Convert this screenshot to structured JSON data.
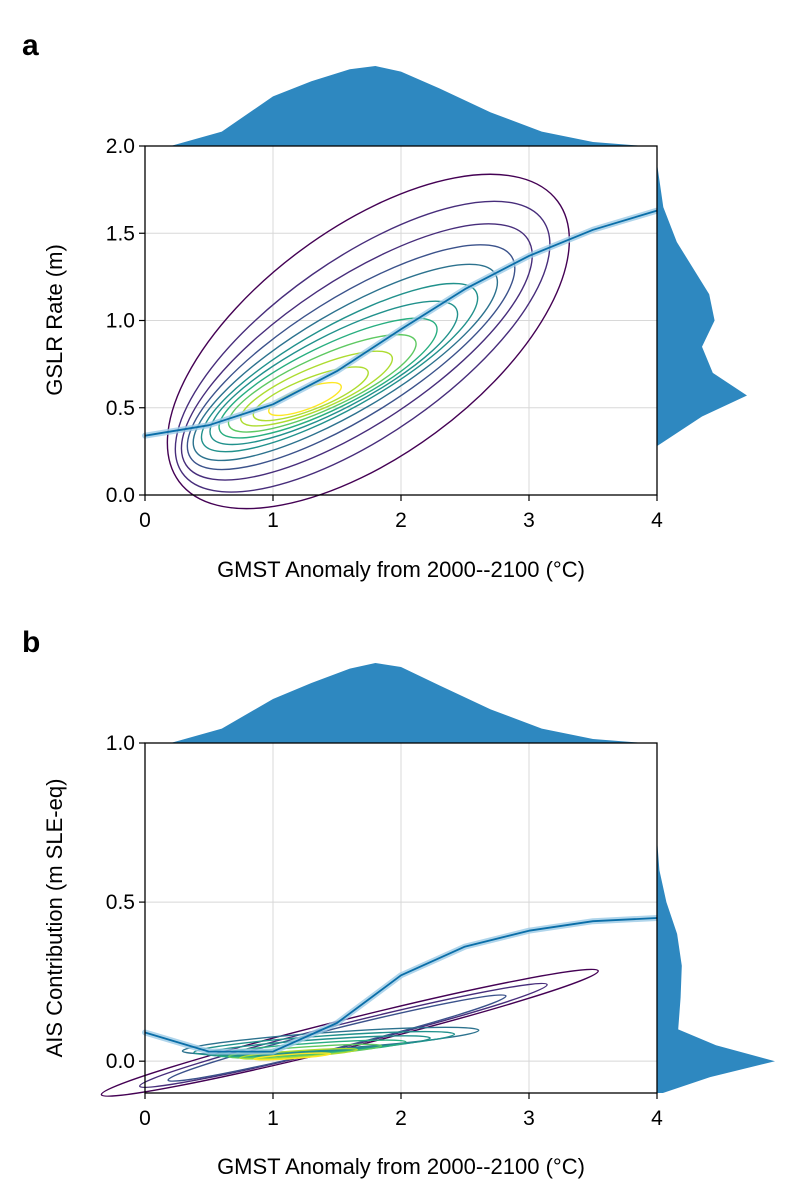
{
  "chart_data": [
    {
      "panel": "a",
      "type": "contour",
      "xlabel": "GMST Anomaly from 2000--2100 (°C)",
      "ylabel": "GSLR Rate (m)",
      "xlim": [
        0,
        4
      ],
      "ylim": [
        0,
        2
      ],
      "xticks": [
        "0",
        "1",
        "2",
        "3",
        "4"
      ],
      "yticks": [
        "0.0",
        "0.5",
        "1.0",
        "1.5",
        "2.0"
      ],
      "grid": true,
      "marginals": "kde on top (x) and right (y)",
      "fit_curve": {
        "x": [
          0,
          0.5,
          1,
          1.5,
          2,
          2.5,
          3,
          3.5,
          4
        ],
        "y": [
          0.34,
          0.4,
          0.52,
          0.71,
          0.95,
          1.18,
          1.37,
          1.52,
          1.63
        ]
      },
      "kde_x": {
        "x": [
          0.2,
          0.6,
          1.0,
          1.3,
          1.6,
          1.8,
          2.0,
          2.3,
          2.7,
          3.1,
          3.5,
          3.9
        ],
        "density": [
          0.0,
          0.18,
          0.62,
          0.81,
          0.96,
          1.0,
          0.93,
          0.72,
          0.42,
          0.18,
          0.05,
          0.0
        ]
      },
      "kde_y": {
        "y": [
          0.28,
          0.45,
          0.57,
          0.7,
          0.85,
          1.0,
          1.15,
          1.3,
          1.45,
          1.65,
          1.9
        ],
        "density": [
          0.0,
          0.5,
          1.0,
          0.62,
          0.5,
          0.64,
          0.58,
          0.4,
          0.22,
          0.07,
          0.0
        ]
      },
      "contour_center": [
        1.25,
        0.55
      ],
      "contour_levels": 12
    },
    {
      "panel": "b",
      "type": "contour",
      "xlabel": "GMST Anomaly from 2000--2100 (°C)",
      "ylabel": "AIS Contribution (m SLE-eq)",
      "xlim": [
        0,
        4
      ],
      "ylim": [
        -0.1,
        1.0
      ],
      "xticks": [
        "0",
        "1",
        "2",
        "3",
        "4"
      ],
      "yticks": [
        "0.0",
        "0.5",
        "1.0"
      ],
      "grid": true,
      "marginals": "kde on top (x) and right (y)",
      "fit_curve": {
        "x": [
          0,
          0.5,
          1,
          1.5,
          2,
          2.5,
          3,
          3.5,
          4
        ],
        "y": [
          0.09,
          0.03,
          0.03,
          0.12,
          0.27,
          0.36,
          0.41,
          0.44,
          0.45
        ]
      },
      "kde_x": {
        "x": [
          0.2,
          0.6,
          1.0,
          1.3,
          1.6,
          1.8,
          2.0,
          2.3,
          2.7,
          3.1,
          3.5,
          3.9
        ],
        "density": [
          0.0,
          0.18,
          0.55,
          0.75,
          0.93,
          1.0,
          0.95,
          0.72,
          0.42,
          0.18,
          0.05,
          0.0
        ]
      },
      "kde_y": {
        "y": [
          -0.1,
          -0.05,
          0.0,
          0.05,
          0.1,
          0.2,
          0.3,
          0.4,
          0.5,
          0.6,
          0.7
        ],
        "density": [
          0.05,
          0.45,
          1.0,
          0.5,
          0.18,
          0.2,
          0.21,
          0.17,
          0.08,
          0.02,
          0.0
        ]
      },
      "contour_center": [
        1.15,
        0.015
      ],
      "contour_levels": 10
    }
  ],
  "colors": {
    "marginal_fill": "#2e88c0",
    "fit_line": "#0a6ea8",
    "fit_band": "#9ccbe6",
    "grid": "#d8d8d8",
    "contours": [
      "#440154",
      "#472d7b",
      "#3b528b",
      "#2c728e",
      "#21918c",
      "#28ae80",
      "#5ec962",
      "#addc30",
      "#fde725"
    ]
  },
  "panel_labels": [
    "a",
    "b"
  ]
}
